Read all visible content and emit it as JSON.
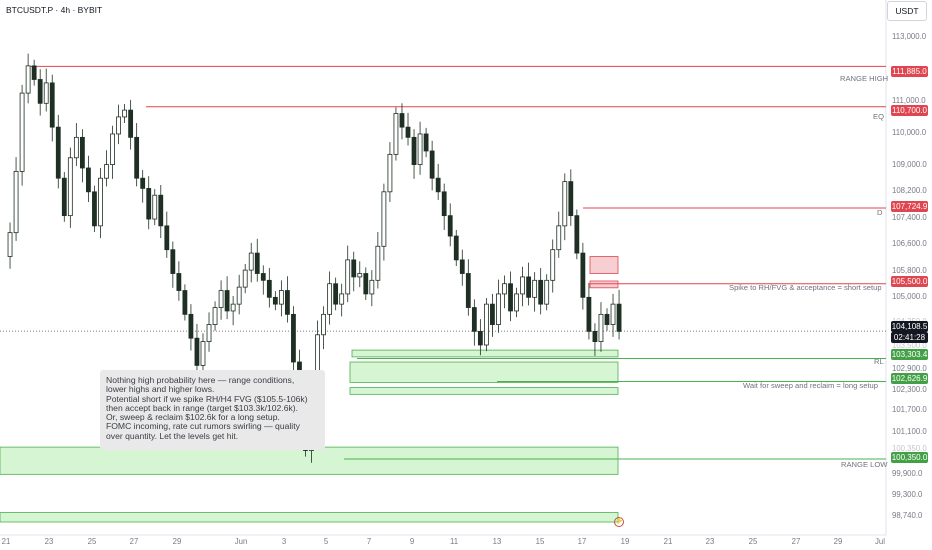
{
  "header": {
    "symbol": "BTCUSDT.P · 4h · BYBIT",
    "currency_button": "USDT"
  },
  "colors": {
    "red": "#e0464f",
    "green": "#4caf50",
    "green_fill": "#c8f2c4",
    "candle": "#1e2f23",
    "note_bg": "#e9e9ea"
  },
  "note": {
    "lines": [
      "Nothing high probability here — range conditions,",
      "lower highs and higher lows.",
      "Potential short if we spike RH/H4 FVG ($105.5-106k)",
      "then accept back in range (target $103.3k/102.6k).",
      "Or, sweep & reclaim $102.6k for a long setup.",
      "FOMC incoming, rate cut rumors swirling — quality",
      "over quantity. Let the levels get hit."
    ]
  },
  "annotations": {
    "range_high": "RANGE HIGH",
    "eq": "EQ",
    "d": "D",
    "short_setup": "Spike to RH/FVG & acceptance = short setup",
    "rl": "RL",
    "long_setup": "Wait for sweep and reclaim = long setup",
    "range_low": "RANGE LOW"
  },
  "price_tags": {
    "range_high": "111,885.0",
    "eq": "110,700.0",
    "d": "107,724.9",
    "fvg": "105,500.0",
    "current_price": "104,108.5",
    "countdown": "02:41:28",
    "rl": "103,303.4",
    "long_level": "102,626.9",
    "range_low": "100,350.0"
  },
  "price_ticks": [
    "113,000.0",
    "111,000.0",
    "110,000.0",
    "109,000.0",
    "108,200.0",
    "107,400.0",
    "106,600.0",
    "105,800.0",
    "105,000.0",
    "104,250.0",
    "103,500.0",
    "102,900.0",
    "102,300.0",
    "101,700.0",
    "101,100.0",
    "100,350.0",
    "99,900.0",
    "99,300.0",
    "98,740.0"
  ],
  "chart_data": {
    "type": "candlestick",
    "symbol": "BTCUSDT.P",
    "timeframe": "4h",
    "exchange": "BYBIT",
    "x_ticks": [
      "21",
      "23",
      "25",
      "27",
      "29",
      "Jun",
      "3",
      "5",
      "7",
      "9",
      "11",
      "13",
      "15",
      "17",
      "19",
      "21",
      "23",
      "25",
      "27",
      "29",
      "Jul"
    ],
    "y_range": [
      98500,
      113600
    ],
    "levels": [
      {
        "label": "RANGE HIGH",
        "price": 111885.0
      },
      {
        "label": "EQ",
        "price": 110700.0
      },
      {
        "label": "D",
        "price": 107724.9
      },
      {
        "label": "Spike to RH/FVG & acceptance = short setup",
        "price": 105500.0
      },
      {
        "label": "RL",
        "price": 103303.4
      },
      {
        "label": "Wait for sweep and reclaim = long setup",
        "price": 102626.9
      },
      {
        "label": "RANGE LOW",
        "price": 100350.0
      }
    ],
    "current_price": 104108.5,
    "price_path": [
      [
        0,
        106300
      ],
      [
        1,
        107000
      ],
      [
        2,
        108800
      ],
      [
        3,
        111100
      ],
      [
        4,
        111900
      ],
      [
        5,
        111500
      ],
      [
        6,
        110800
      ],
      [
        7,
        111400
      ],
      [
        8,
        110100
      ],
      [
        9,
        108600
      ],
      [
        10,
        107500
      ],
      [
        11,
        109200
      ],
      [
        12,
        109800
      ],
      [
        13,
        108900
      ],
      [
        14,
        108200
      ],
      [
        15,
        107200
      ],
      [
        16,
        108600
      ],
      [
        17,
        109000
      ],
      [
        18,
        109900
      ],
      [
        19,
        110400
      ],
      [
        20,
        110600
      ],
      [
        21,
        109800
      ],
      [
        22,
        108600
      ],
      [
        23,
        108300
      ],
      [
        24,
        107400
      ],
      [
        25,
        108100
      ],
      [
        26,
        107200
      ],
      [
        27,
        106500
      ],
      [
        28,
        105800
      ],
      [
        29,
        105300
      ],
      [
        30,
        104600
      ],
      [
        31,
        103900
      ],
      [
        32,
        103100
      ],
      [
        33,
        103800
      ],
      [
        34,
        104300
      ],
      [
        35,
        104800
      ],
      [
        36,
        105300
      ],
      [
        37,
        104700
      ],
      [
        38,
        104900
      ],
      [
        39,
        105400
      ],
      [
        40,
        105900
      ],
      [
        41,
        106400
      ],
      [
        42,
        105800
      ],
      [
        43,
        105600
      ],
      [
        44,
        105100
      ],
      [
        45,
        104900
      ],
      [
        46,
        105300
      ],
      [
        47,
        104600
      ],
      [
        48,
        103200
      ],
      [
        49,
        101300
      ],
      [
        50,
        100600
      ],
      [
        51,
        102500
      ],
      [
        52,
        104000
      ],
      [
        53,
        104600
      ],
      [
        54,
        105500
      ],
      [
        55,
        104900
      ],
      [
        56,
        105200
      ],
      [
        57,
        106200
      ],
      [
        58,
        105700
      ],
      [
        59,
        105800
      ],
      [
        60,
        105200
      ],
      [
        61,
        105600
      ],
      [
        62,
        106600
      ],
      [
        63,
        108200
      ],
      [
        64,
        109300
      ],
      [
        65,
        110500
      ],
      [
        66,
        110100
      ],
      [
        67,
        109800
      ],
      [
        68,
        109000
      ],
      [
        69,
        109900
      ],
      [
        70,
        109400
      ],
      [
        71,
        108600
      ],
      [
        72,
        108200
      ],
      [
        73,
        107500
      ],
      [
        74,
        106900
      ],
      [
        75,
        106200
      ],
      [
        76,
        105800
      ],
      [
        77,
        104800
      ],
      [
        78,
        104100
      ],
      [
        79,
        103700
      ],
      [
        80,
        104900
      ],
      [
        81,
        104300
      ],
      [
        82,
        105200
      ],
      [
        83,
        105500
      ],
      [
        84,
        104700
      ],
      [
        85,
        105200
      ],
      [
        86,
        105700
      ],
      [
        87,
        105100
      ],
      [
        88,
        105600
      ],
      [
        89,
        104900
      ],
      [
        90,
        105600
      ],
      [
        91,
        106500
      ],
      [
        92,
        107200
      ],
      [
        93,
        108500
      ],
      [
        94,
        107500
      ],
      [
        95,
        106400
      ],
      [
        96,
        105100
      ],
      [
        97,
        104100
      ],
      [
        98,
        103800
      ],
      [
        99,
        104600
      ],
      [
        100,
        104300
      ],
      [
        101,
        104900
      ],
      [
        102,
        104100
      ]
    ],
    "zones": [
      {
        "type": "fvg",
        "side": "supply",
        "from": 105800,
        "to": 106300
      },
      {
        "type": "fvg",
        "side": "supply",
        "from": 105380,
        "to": 105580
      },
      {
        "type": "demand",
        "from": 103350,
        "to": 103550
      },
      {
        "type": "demand",
        "from": 102600,
        "to": 103200
      },
      {
        "type": "demand",
        "from": 102250,
        "to": 102450
      },
      {
        "type": "demand",
        "from": 99900,
        "to": 100700
      },
      {
        "type": "demand",
        "from": 98500,
        "to": 98780
      }
    ]
  }
}
